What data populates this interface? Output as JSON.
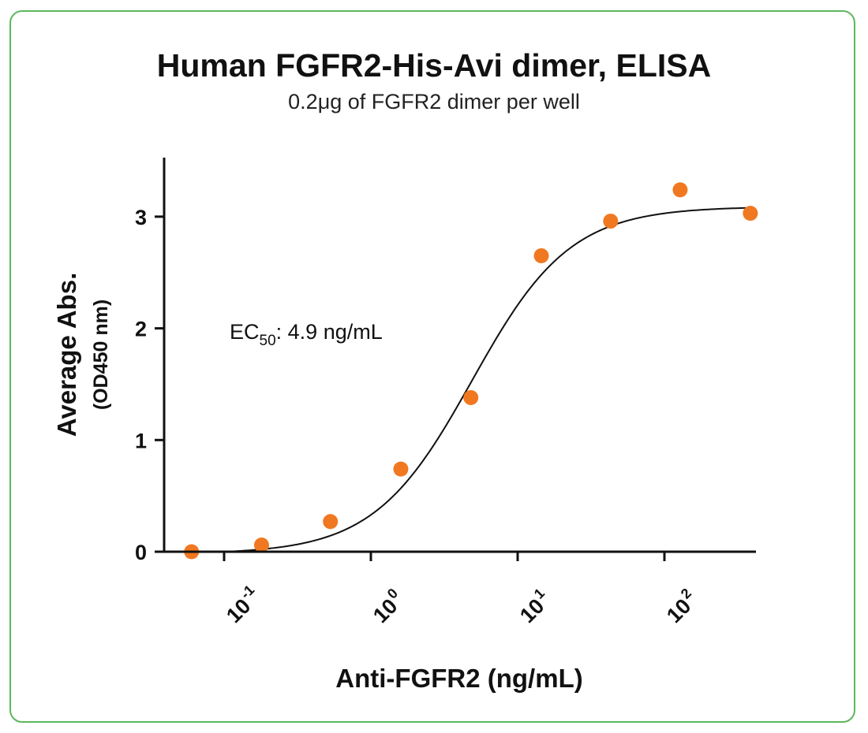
{
  "chart_data": {
    "type": "scatter",
    "title": "Human FGFR2-His-Avi dimer, ELISA",
    "subtitle": "0.2μg of FGFR2 dimer per well",
    "xlabel": "Anti-FGFR2 (ng/mL)",
    "ylabel": "Average Abs.",
    "ylabel_sub": "(OD450 nm)",
    "xscale": "log",
    "xlim": [
      0.05,
      400
    ],
    "ylim": [
      0,
      3.5
    ],
    "x_ticks": [
      {
        "value": 0.1,
        "base": "10",
        "exp": "-1"
      },
      {
        "value": 1,
        "base": "10",
        "exp": "0"
      },
      {
        "value": 10,
        "base": "10",
        "exp": "1"
      },
      {
        "value": 100,
        "base": "10",
        "exp": "2"
      }
    ],
    "y_ticks": [
      0,
      1,
      2,
      3
    ],
    "series": [
      {
        "color": "#f07820",
        "x": [
          0.06,
          0.18,
          0.53,
          1.6,
          4.8,
          14.5,
          43,
          128,
          385
        ],
        "y": [
          0.0,
          0.06,
          0.27,
          0.74,
          1.38,
          2.65,
          2.96,
          3.24,
          3.03
        ]
      }
    ],
    "fit_curve": {
      "model": "4PL",
      "bottom": -0.02,
      "top": 3.09,
      "ec50": 4.9,
      "hill": 1.3
    },
    "annotation": {
      "prefix": "EC",
      "subscript": "50",
      "suffix": ": 4.9 ng/mL"
    },
    "grid": false,
    "legend": "none"
  },
  "colors": {
    "frame_border": "#5cb85c",
    "marker": "#f07820",
    "axis": "#111111"
  }
}
